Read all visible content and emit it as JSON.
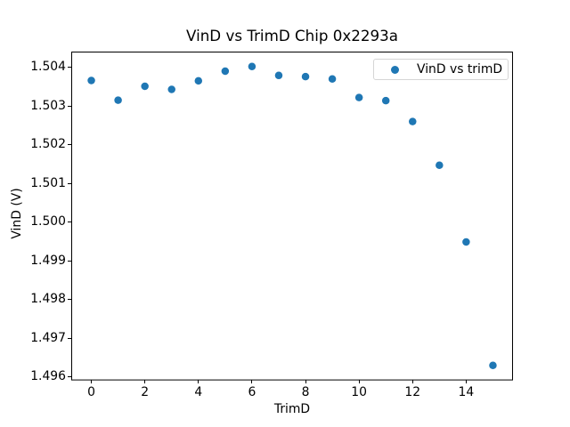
{
  "chart_data": {
    "type": "scatter",
    "title": "VinD vs TrimD Chip 0x2293a",
    "xlabel": "TrimD",
    "ylabel": "VinD (V)",
    "legend_entries": [
      "VinD vs trimD"
    ],
    "legend_position": "upper right",
    "marker_color": "#1f77b4",
    "x": [
      0,
      1,
      2,
      3,
      4,
      5,
      6,
      7,
      8,
      9,
      10,
      11,
      12,
      13,
      14,
      15
    ],
    "y": [
      1.50367,
      1.50316,
      1.50352,
      1.50344,
      1.50366,
      1.50391,
      1.50403,
      1.5038,
      1.50377,
      1.50371,
      1.50323,
      1.50315,
      1.50261,
      1.50148,
      1.4995,
      1.49631
    ],
    "xlim": [
      -0.75,
      15.75
    ],
    "ylim": [
      1.495924,
      1.504416
    ],
    "xticks": [
      0,
      2,
      4,
      6,
      8,
      10,
      12,
      14
    ],
    "xtick_labels": [
      "0",
      "2",
      "4",
      "6",
      "8",
      "10",
      "12",
      "14"
    ],
    "yticks": [
      1.496,
      1.497,
      1.498,
      1.499,
      1.5,
      1.501,
      1.502,
      1.503,
      1.504
    ],
    "ytick_labels": [
      "1.496",
      "1.497",
      "1.498",
      "1.499",
      "1.500",
      "1.501",
      "1.502",
      "1.503",
      "1.504"
    ],
    "grid": false
  }
}
